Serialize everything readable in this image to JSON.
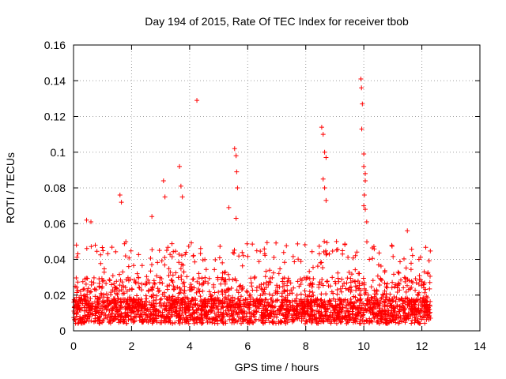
{
  "chart_data": {
    "type": "scatter",
    "title": "Day 194 of 2015, Rate Of TEC Index for receiver tbob",
    "xlabel": "GPS time / hours",
    "ylabel": "ROTI / TECUs",
    "xlim": [
      0,
      14
    ],
    "ylim": [
      0,
      0.16
    ],
    "x_ticks": [
      0,
      2,
      4,
      6,
      8,
      10,
      12,
      14
    ],
    "y_ticks": [
      0,
      0.02,
      0.04,
      0.06,
      0.08,
      0.1,
      0.12,
      0.14,
      0.16
    ],
    "x_tick_labels": [
      "0",
      "2",
      "4",
      "6",
      "8",
      "10",
      "12",
      "14"
    ],
    "y_tick_labels": [
      "0",
      "0.02",
      "0.04",
      "0.06",
      "0.08",
      "0.1",
      "0.12",
      "0.14",
      "0.16"
    ],
    "grid": true,
    "marker": "+",
    "color": "#ff0000",
    "series": [
      {
        "name": "ROTI",
        "note": "dense band of points between x=0 and x=12.3, mostly 0.005-0.03 TECU",
        "x_range": [
          0,
          12.3
        ],
        "bulk_y_range": [
          0.004,
          0.03
        ],
        "outliers": [
          [
            0.1,
            0.048
          ],
          [
            0.45,
            0.062
          ],
          [
            0.6,
            0.061
          ],
          [
            1.6,
            0.076
          ],
          [
            1.65,
            0.072
          ],
          [
            2.7,
            0.064
          ],
          [
            3.1,
            0.084
          ],
          [
            3.15,
            0.075
          ],
          [
            3.65,
            0.092
          ],
          [
            3.7,
            0.081
          ],
          [
            3.75,
            0.075
          ],
          [
            4.25,
            0.129
          ],
          [
            5.35,
            0.069
          ],
          [
            5.55,
            0.102
          ],
          [
            5.6,
            0.098
          ],
          [
            5.62,
            0.089
          ],
          [
            5.65,
            0.08
          ],
          [
            5.6,
            0.063
          ],
          [
            8.55,
            0.114
          ],
          [
            8.6,
            0.11
          ],
          [
            8.65,
            0.1
          ],
          [
            8.7,
            0.097
          ],
          [
            8.6,
            0.085
          ],
          [
            8.65,
            0.08
          ],
          [
            8.7,
            0.073
          ],
          [
            9.9,
            0.141
          ],
          [
            9.92,
            0.136
          ],
          [
            9.95,
            0.127
          ],
          [
            9.93,
            0.113
          ],
          [
            10.0,
            0.099
          ],
          [
            10.0,
            0.092
          ],
          [
            10.05,
            0.088
          ],
          [
            10.05,
            0.084
          ],
          [
            10.02,
            0.076
          ],
          [
            10.0,
            0.07
          ],
          [
            10.05,
            0.068
          ],
          [
            10.1,
            0.061
          ],
          [
            11.5,
            0.056
          ],
          [
            11.9,
            0.04
          ],
          [
            12.2,
            0.032
          ]
        ]
      }
    ]
  }
}
